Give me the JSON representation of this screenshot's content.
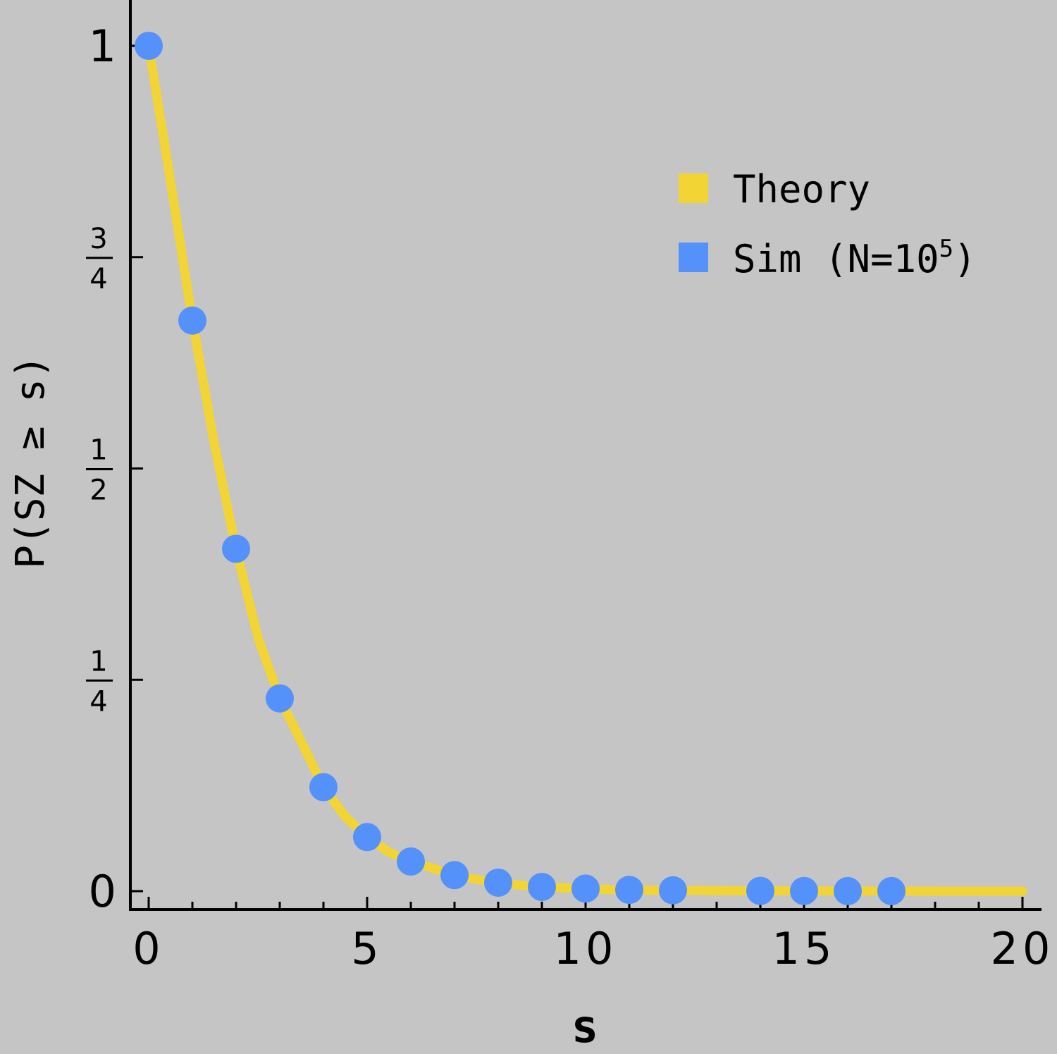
{
  "chart_data": {
    "type": "line",
    "xlabel": "s",
    "ylabel": "P(SZ ≥ s)",
    "xlim": [
      0,
      20
    ],
    "ylim": [
      0,
      1
    ],
    "x_ticks": [
      {
        "value": 0,
        "label": "0"
      },
      {
        "value": 5,
        "label": "5"
      },
      {
        "value": 10,
        "label": "10"
      },
      {
        "value": 15,
        "label": "15"
      },
      {
        "value": 20,
        "label": "20"
      }
    ],
    "y_ticks": [
      {
        "value": 0,
        "label": "0"
      },
      {
        "value": 0.25,
        "num": "1",
        "den": "4"
      },
      {
        "value": 0.5,
        "num": "1",
        "den": "2"
      },
      {
        "value": 0.75,
        "num": "3",
        "den": "4"
      },
      {
        "value": 1,
        "label": "1"
      }
    ],
    "grid": false,
    "legend_position": "top-right",
    "series": [
      {
        "name": "Theory",
        "kind": "line",
        "color": "#f2d434",
        "x": [
          0,
          0.5,
          1,
          1.5,
          2,
          2.5,
          3,
          3.5,
          4,
          4.5,
          5,
          5.5,
          6,
          6.5,
          7,
          7.5,
          8,
          8.5,
          9,
          9.5,
          10,
          10.5,
          11,
          11.5,
          12,
          13,
          14,
          15,
          16,
          17,
          18,
          19,
          20
        ],
        "y": [
          1,
          0.84,
          0.675,
          0.53,
          0.405,
          0.3,
          0.228,
          0.176,
          0.123,
          0.088,
          0.064,
          0.046,
          0.035,
          0.027,
          0.019,
          0.014,
          0.01,
          0.007,
          0.005,
          0.004,
          0.003,
          0.002,
          0.0015,
          0.001,
          0.001,
          0.0005,
          0.0003,
          0.0002,
          0.0001,
          0.0001,
          0,
          0,
          0
        ]
      },
      {
        "name": "Sim (N=10",
        "name_sup": "5",
        "name_suffix": ")",
        "kind": "scatter",
        "color": "#5591fa",
        "x": [
          0,
          1,
          2,
          3,
          4,
          5,
          6,
          7,
          8,
          9,
          10,
          11,
          12,
          14,
          15,
          16,
          17
        ],
        "y": [
          1,
          0.675,
          0.405,
          0.228,
          0.123,
          0.064,
          0.035,
          0.019,
          0.01,
          0.005,
          0.003,
          0.0015,
          0.001,
          0.0003,
          0.0002,
          0.0001,
          0.0001
        ]
      }
    ]
  }
}
